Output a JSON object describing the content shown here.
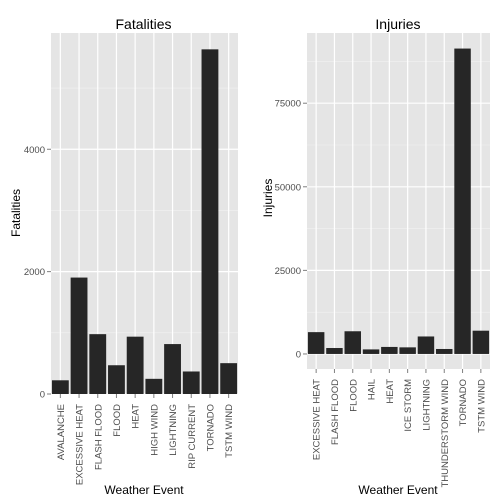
{
  "chart_data": [
    {
      "type": "bar",
      "title": "Fatalities",
      "xlabel": "Weather Event",
      "ylabel": "Fatalities",
      "categories": [
        "AVALANCHE",
        "EXCESSIVE HEAT",
        "FLASH FLOOD",
        "FLOOD",
        "HEAT",
        "HIGH WIND",
        "LIGHTNING",
        "RIP CURRENT",
        "TORNADO",
        "TSTM WIND"
      ],
      "values": [
        224,
        1903,
        978,
        470,
        937,
        248,
        816,
        368,
        5633,
        504
      ],
      "ylim": [
        0,
        5900
      ],
      "yticks": [
        0,
        2000,
        4000
      ],
      "bar_color": "#262626",
      "panel_color": "#e5e5e5",
      "grid": true
    },
    {
      "type": "bar",
      "title": "Injuries",
      "xlabel": "Weather Event",
      "ylabel": "Injuries",
      "categories": [
        "EXCESSIVE HEAT",
        "FLASH FLOOD",
        "FLOOD",
        "HAIL",
        "HEAT",
        "ICE STORM",
        "LIGHTNING",
        "THUNDERSTORM WIND",
        "TORNADO",
        "TSTM WIND"
      ],
      "values": [
        6525,
        1777,
        6789,
        1361,
        2100,
        1975,
        5230,
        1488,
        91346,
        6957
      ],
      "ylim": [
        -4500,
        96000
      ],
      "yticks": [
        0,
        25000,
        50000,
        75000
      ],
      "bar_color": "#262626",
      "panel_color": "#e5e5e5",
      "grid": true
    }
  ]
}
